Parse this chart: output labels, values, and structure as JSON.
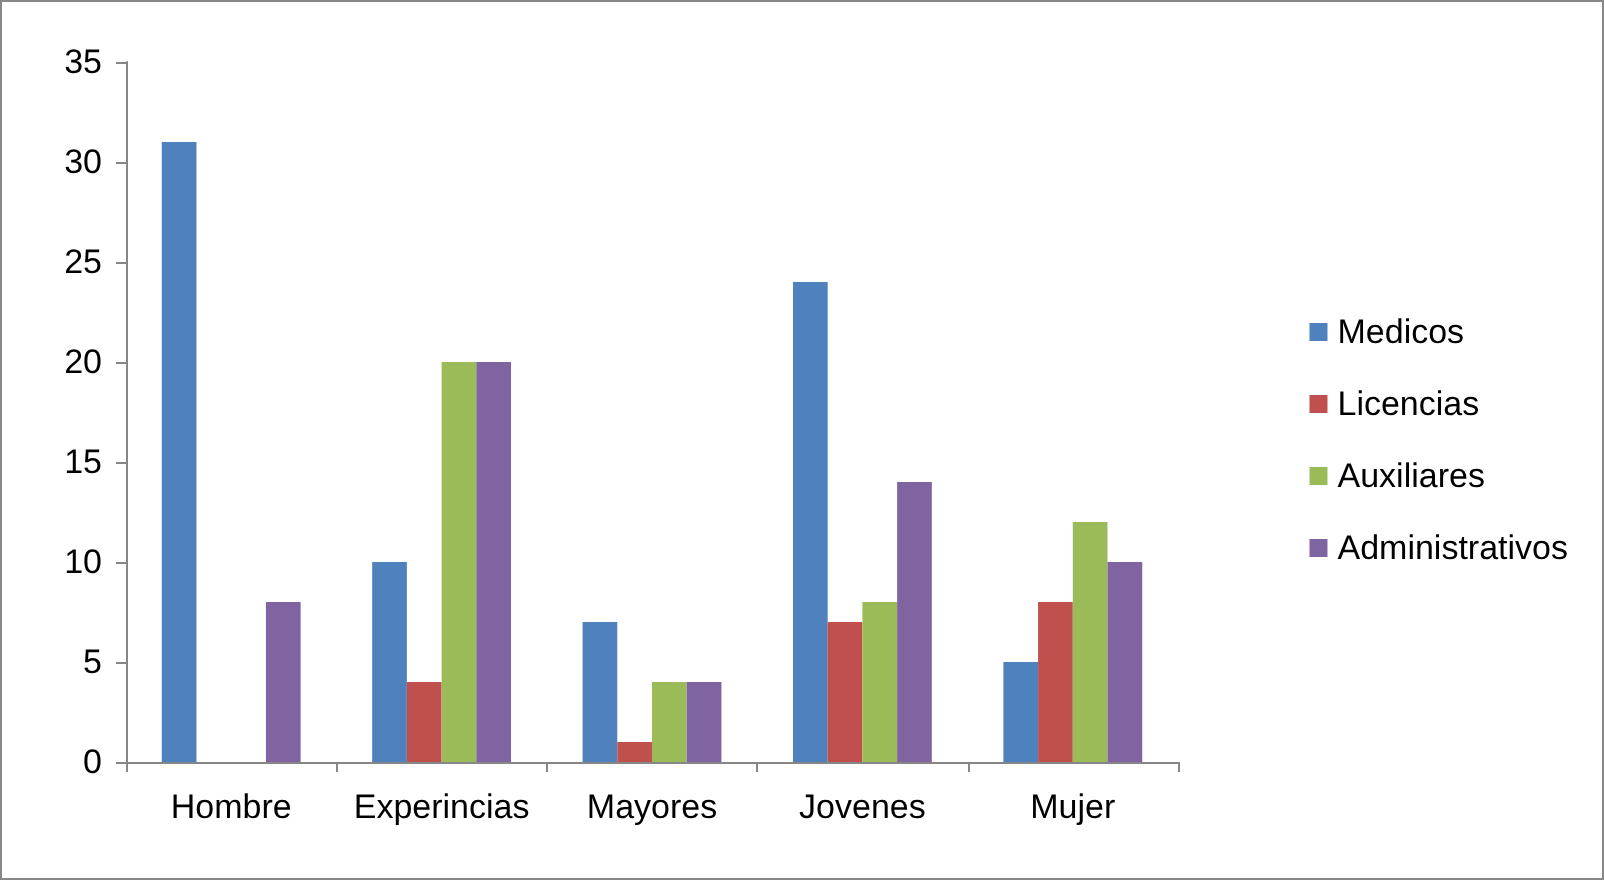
{
  "chart_data": {
    "type": "bar",
    "categories": [
      "Hombre",
      "Experincias",
      "Mayores",
      "Jovenes",
      "Mujer"
    ],
    "series": [
      {
        "name": "Medicos",
        "color": "#4f81bd",
        "values": [
          31,
          10,
          7,
          24,
          5
        ]
      },
      {
        "name": "Licencias",
        "color": "#c0504d",
        "values": [
          0,
          4,
          1,
          7,
          8
        ]
      },
      {
        "name": "Auxiliares",
        "color": "#9bbb59",
        "values": [
          0,
          20,
          4,
          8,
          12
        ]
      },
      {
        "name": "Administrativos",
        "color": "#8064a2",
        "values": [
          8,
          20,
          4,
          14,
          10
        ]
      }
    ],
    "ylim": [
      0,
      35
    ],
    "yticks": [
      0,
      5,
      10,
      15,
      20,
      25,
      30,
      35
    ],
    "grid": false,
    "legend": "right"
  }
}
